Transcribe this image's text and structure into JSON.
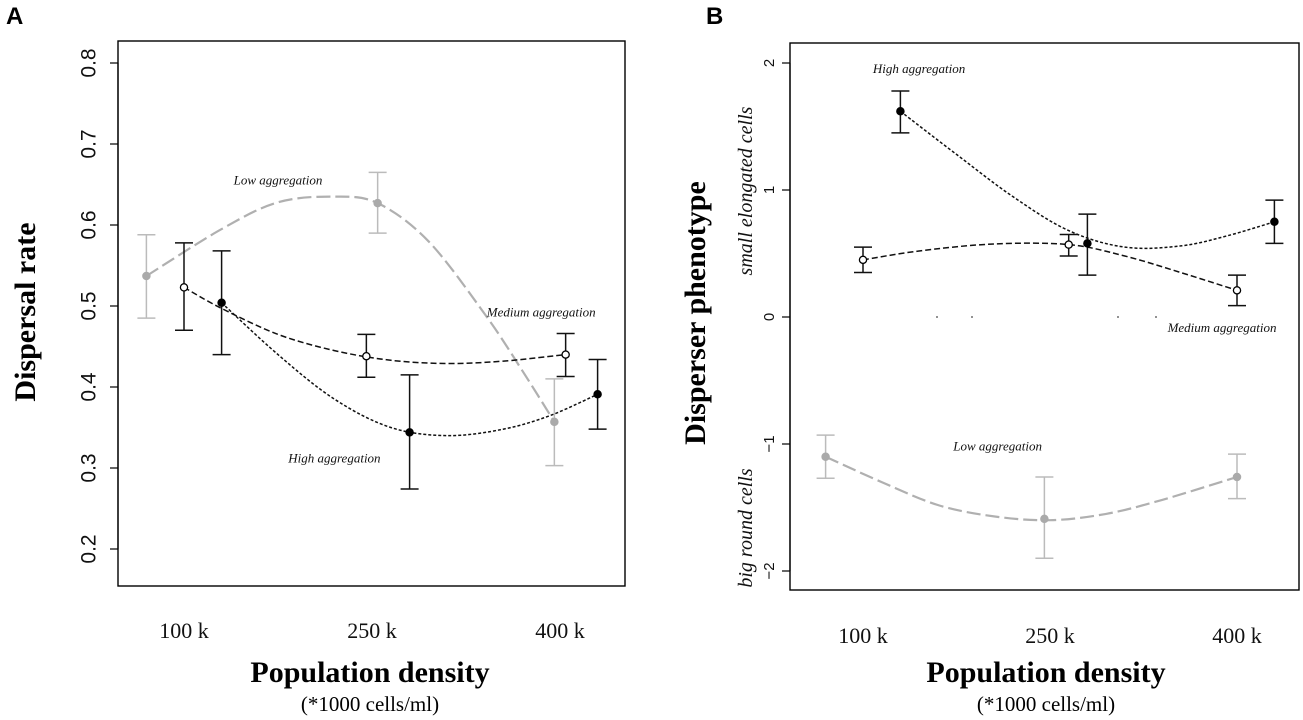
{
  "chart_data": [
    {
      "panel": "A",
      "type": "line",
      "xlabel": "Population density",
      "xlabel_sub": "(*1000 cells/ml)",
      "ylabel": "Dispersal rate",
      "categories": [
        "100 k",
        "250 k",
        "400 k"
      ],
      "ylim": [
        0.2,
        0.8
      ],
      "yticks": [
        "0.2",
        "0.3",
        "0.4",
        "0.5",
        "0.6",
        "0.7",
        "0.8"
      ],
      "grid": false,
      "series": [
        {
          "name": "Low aggregation",
          "color": "#aaaaaa",
          "marker": "filled",
          "dash": "long",
          "points": [
            {
              "x": 0.8,
              "y": 0.537,
              "lo": 0.485,
              "hi": 0.588
            },
            {
              "x": 2.03,
              "y": 0.627,
              "lo": 0.59,
              "hi": 0.665
            },
            {
              "x": 2.97,
              "y": 0.357,
              "lo": 0.303,
              "hi": 0.41
            }
          ],
          "curve": [
            [
              0.8,
              0.537
            ],
            [
              1.2,
              0.595
            ],
            [
              1.5,
              0.628
            ],
            [
              1.8,
              0.635
            ],
            [
              2.03,
              0.627
            ],
            [
              2.3,
              0.58
            ],
            [
              2.6,
              0.49
            ],
            [
              2.8,
              0.42
            ],
            [
              2.97,
              0.357
            ]
          ]
        },
        {
          "name": "Medium aggregation",
          "color": "#000000",
          "marker": "open",
          "dash": "medium",
          "points": [
            {
              "x": 1.0,
              "y": 0.523,
              "lo": 0.47,
              "hi": 0.578
            },
            {
              "x": 1.97,
              "y": 0.438,
              "lo": 0.412,
              "hi": 0.465
            },
            {
              "x": 3.03,
              "y": 0.44,
              "lo": 0.413,
              "hi": 0.466
            }
          ],
          "curve": [
            [
              1.0,
              0.523
            ],
            [
              1.2,
              0.497
            ],
            [
              1.5,
              0.465
            ],
            [
              1.8,
              0.445
            ],
            [
              2.1,
              0.433
            ],
            [
              2.4,
              0.429
            ],
            [
              2.7,
              0.432
            ],
            [
              3.03,
              0.44
            ]
          ]
        },
        {
          "name": "High aggregation",
          "color": "#000000",
          "marker": "filled",
          "dash": "short",
          "points": [
            {
              "x": 1.2,
              "y": 0.504,
              "lo": 0.44,
              "hi": 0.568
            },
            {
              "x": 2.2,
              "y": 0.344,
              "lo": 0.274,
              "hi": 0.415
            },
            {
              "x": 3.2,
              "y": 0.391,
              "lo": 0.348,
              "hi": 0.434
            }
          ],
          "curve": [
            [
              1.2,
              0.504
            ],
            [
              1.5,
              0.44
            ],
            [
              1.8,
              0.385
            ],
            [
              2.1,
              0.35
            ],
            [
              2.4,
              0.34
            ],
            [
              2.7,
              0.348
            ],
            [
              2.95,
              0.365
            ],
            [
              3.2,
              0.391
            ]
          ]
        }
      ],
      "annotations": [
        {
          "text": "Low aggregation",
          "x": 1.5,
          "y": 0.65
        },
        {
          "text": "Medium aggregation",
          "x": 2.9,
          "y": 0.487
        },
        {
          "text": "High aggregation",
          "x": 1.8,
          "y": 0.307
        }
      ]
    },
    {
      "panel": "B",
      "type": "line",
      "xlabel": "Population density",
      "xlabel_sub": "(*1000 cells/ml)",
      "ylabel": "Disperser phenotype",
      "ylabel_top": "small elongated cells",
      "ylabel_bottom": "big round cells",
      "categories": [
        "100 k",
        "250 k",
        "400 k"
      ],
      "ylim": [
        -2.15,
        2.15
      ],
      "yticks": [
        "-2",
        "-1",
        "0",
        "1",
        "2"
      ],
      "grid": false,
      "series": [
        {
          "name": "High aggregation",
          "color": "#000000",
          "marker": "filled",
          "dash": "short",
          "points": [
            {
              "x": 1.2,
              "y": 1.62,
              "lo": 1.45,
              "hi": 1.78
            },
            {
              "x": 2.2,
              "y": 0.58,
              "lo": 0.33,
              "hi": 0.81
            },
            {
              "x": 3.2,
              "y": 0.75,
              "lo": 0.58,
              "hi": 0.92
            }
          ],
          "curve": [
            [
              1.2,
              1.62
            ],
            [
              1.5,
              1.28
            ],
            [
              1.8,
              0.95
            ],
            [
              2.1,
              0.68
            ],
            [
              2.4,
              0.55
            ],
            [
              2.7,
              0.56
            ],
            [
              2.95,
              0.64
            ],
            [
              3.2,
              0.75
            ]
          ]
        },
        {
          "name": "Medium aggregation",
          "color": "#000000",
          "marker": "open",
          "dash": "medium",
          "points": [
            {
              "x": 1.0,
              "y": 0.45,
              "lo": 0.35,
              "hi": 0.55
            },
            {
              "x": 2.1,
              "y": 0.57,
              "lo": 0.48,
              "hi": 0.65
            },
            {
              "x": 3.0,
              "y": 0.21,
              "lo": 0.09,
              "hi": 0.33
            }
          ],
          "curve": [
            [
              1.0,
              0.45
            ],
            [
              1.3,
              0.52
            ],
            [
              1.7,
              0.575
            ],
            [
              2.1,
              0.57
            ],
            [
              2.4,
              0.48
            ],
            [
              2.7,
              0.35
            ],
            [
              3.0,
              0.21
            ]
          ]
        },
        {
          "name": "Low aggregation",
          "color": "#aaaaaa",
          "marker": "filled",
          "dash": "long",
          "points": [
            {
              "x": 0.8,
              "y": -1.1,
              "lo": -1.27,
              "hi": -0.93
            },
            {
              "x": 1.97,
              "y": -1.59,
              "lo": -1.9,
              "hi": -1.26
            },
            {
              "x": 3.0,
              "y": -1.26,
              "lo": -1.43,
              "hi": -1.08
            }
          ],
          "curve": [
            [
              0.8,
              -1.1
            ],
            [
              1.1,
              -1.3
            ],
            [
              1.4,
              -1.48
            ],
            [
              1.7,
              -1.57
            ],
            [
              2.0,
              -1.6
            ],
            [
              2.3,
              -1.55
            ],
            [
              2.6,
              -1.44
            ],
            [
              3.0,
              -1.26
            ]
          ]
        }
      ],
      "annotations": [
        {
          "text": "High aggregation",
          "x": 1.3,
          "y": 1.92
        },
        {
          "text": "Medium aggregation",
          "x": 2.92,
          "y": -0.12
        },
        {
          "text": "Low aggregation",
          "x": 1.72,
          "y": -1.05
        }
      ]
    }
  ]
}
